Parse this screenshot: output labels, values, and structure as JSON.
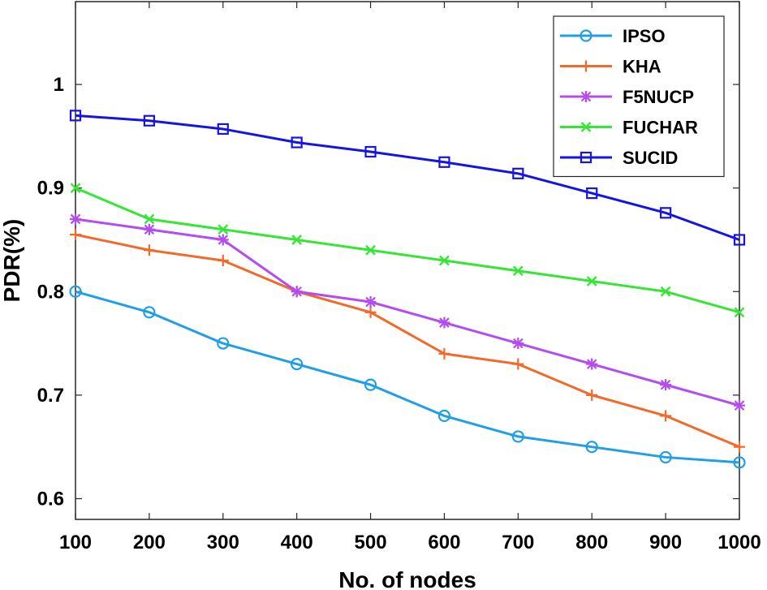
{
  "chart_data": {
    "type": "line",
    "title": "",
    "xlabel": "No. of nodes",
    "ylabel": "PDR(%)",
    "x": [
      100,
      200,
      300,
      400,
      500,
      600,
      700,
      800,
      900,
      1000
    ],
    "xlim": [
      100,
      1000
    ],
    "ylim": [
      0.58,
      1.08
    ],
    "xticks": [
      "100",
      "200",
      "300",
      "400",
      "500",
      "600",
      "700",
      "800",
      "900",
      "1000"
    ],
    "yticks": [
      "0.6",
      "0.7",
      "0.8",
      "0.9",
      "1"
    ],
    "ytick_values": [
      0.6,
      0.7,
      0.8,
      0.9,
      1.0
    ],
    "grid": false,
    "legend_position": "top-right",
    "series": [
      {
        "name": "IPSO",
        "color": "#1f9fe6",
        "marker": "circle",
        "values": [
          0.8,
          0.78,
          0.75,
          0.73,
          0.71,
          0.68,
          0.66,
          0.65,
          0.64,
          0.635
        ]
      },
      {
        "name": "KHA",
        "color": "#f26a2a",
        "marker": "plus",
        "values": [
          0.855,
          0.84,
          0.83,
          0.8,
          0.78,
          0.74,
          0.73,
          0.7,
          0.68,
          0.65
        ]
      },
      {
        "name": "F5NUCP",
        "color": "#b44cf0",
        "marker": "star",
        "values": [
          0.87,
          0.86,
          0.85,
          0.8,
          0.79,
          0.77,
          0.75,
          0.73,
          0.71,
          0.69
        ]
      },
      {
        "name": "FUCHAR",
        "color": "#35e635",
        "marker": "x",
        "values": [
          0.9,
          0.87,
          0.86,
          0.85,
          0.84,
          0.83,
          0.82,
          0.81,
          0.8,
          0.78
        ]
      },
      {
        "name": "SUCID",
        "color": "#1414e6",
        "marker": "square",
        "values": [
          0.97,
          0.965,
          0.957,
          0.944,
          0.935,
          0.925,
          0.914,
          0.895,
          0.876,
          0.85
        ]
      }
    ]
  }
}
